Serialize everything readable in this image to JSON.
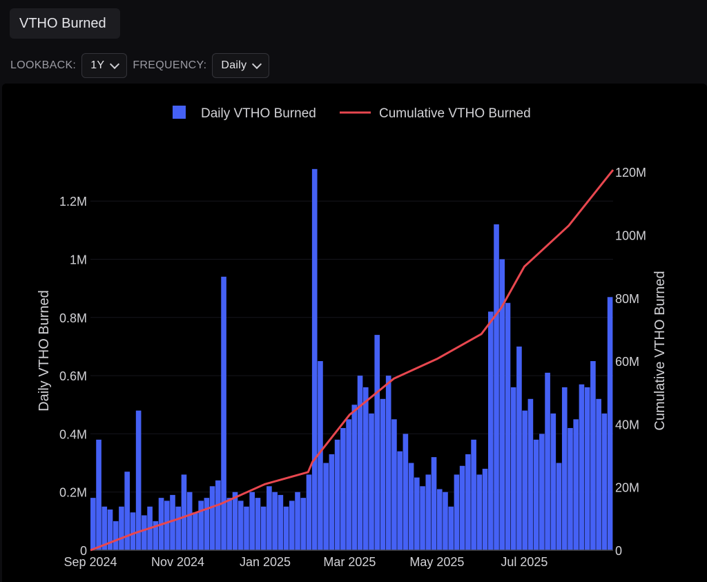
{
  "header": {
    "title": "VTHO Burned"
  },
  "controls": {
    "lookback_label": "LOOKBACK:",
    "lookback_value": "1Y",
    "frequency_label": "FREQUENCY:",
    "frequency_value": "Daily"
  },
  "colors": {
    "bars": "#4561f5",
    "line": "#e8474f"
  },
  "chart_data": {
    "type": "bar+line",
    "legend": [
      "Daily VTHO Burned",
      "Cumulative VTHO Burned"
    ],
    "legend_position": "top-center",
    "ylabel": "Daily VTHO Burned",
    "y2label": "Cumulative VTHO Burned",
    "ylim": [
      0,
      1.32
    ],
    "y2lim": [
      0,
      125
    ],
    "yticks": [
      {
        "v": 0,
        "label": "0"
      },
      {
        "v": 0.2,
        "label": "0.2M"
      },
      {
        "v": 0.4,
        "label": "0.4M"
      },
      {
        "v": 0.6,
        "label": "0.6M"
      },
      {
        "v": 0.8,
        "label": "0.8M"
      },
      {
        "v": 1,
        "label": "1M"
      },
      {
        "v": 1.2,
        "label": "1.2M"
      }
    ],
    "y2ticks": [
      {
        "v": 0,
        "label": "0"
      },
      {
        "v": 20,
        "label": "20M"
      },
      {
        "v": 40,
        "label": "40M"
      },
      {
        "v": 60,
        "label": "60M"
      },
      {
        "v": 80,
        "label": "80M"
      },
      {
        "v": 100,
        "label": "100M"
      },
      {
        "v": 120,
        "label": "120M"
      }
    ],
    "xrange_days": [
      0,
      365
    ],
    "xticks": [
      {
        "day": 0,
        "label": "Sep 2024"
      },
      {
        "day": 61,
        "label": "Nov 2024"
      },
      {
        "day": 122,
        "label": "Jan 2025"
      },
      {
        "day": 181,
        "label": "Mar 2025"
      },
      {
        "day": 242,
        "label": "May 2025"
      },
      {
        "day": 303,
        "label": "Jul 2025"
      }
    ],
    "daily_unit": "M VTHO (sampled ~every 4 days)",
    "daily": [
      0.18,
      0.38,
      0.15,
      0.14,
      0.1,
      0.15,
      0.27,
      0.13,
      0.48,
      0.12,
      0.15,
      0.1,
      0.18,
      0.17,
      0.19,
      0.15,
      0.26,
      0.2,
      0.13,
      0.17,
      0.18,
      0.22,
      0.24,
      0.94,
      0.18,
      0.2,
      0.17,
      0.15,
      0.2,
      0.18,
      0.15,
      0.22,
      0.2,
      0.19,
      0.15,
      0.17,
      0.2,
      0.18,
      0.26,
      1.31,
      0.65,
      0.3,
      0.33,
      0.38,
      0.42,
      0.45,
      0.5,
      0.6,
      0.56,
      0.47,
      0.74,
      0.52,
      0.6,
      0.45,
      0.34,
      0.4,
      0.3,
      0.25,
      0.22,
      0.26,
      0.32,
      0.21,
      0.2,
      0.15,
      0.26,
      0.29,
      0.33,
      0.38,
      0.26,
      0.28,
      0.82,
      1.12,
      1.0,
      0.85,
      0.56,
      0.7,
      0.48,
      0.52,
      0.38,
      0.4,
      0.61,
      0.47,
      0.3,
      0.56,
      0.42,
      0.45,
      0.57,
      0.56,
      0.65,
      0.52,
      0.47,
      0.87
    ],
    "cumulative": [
      {
        "day": 0,
        "v": 0
      },
      {
        "day": 30,
        "v": 5.3
      },
      {
        "day": 61,
        "v": 9.9
      },
      {
        "day": 91,
        "v": 14.7
      },
      {
        "day": 122,
        "v": 21
      },
      {
        "day": 152,
        "v": 24.8
      },
      {
        "day": 155,
        "v": 28
      },
      {
        "day": 181,
        "v": 43
      },
      {
        "day": 212,
        "v": 54.5
      },
      {
        "day": 242,
        "v": 60.7
      },
      {
        "day": 273,
        "v": 68.6
      },
      {
        "day": 287,
        "v": 77
      },
      {
        "day": 303,
        "v": 90
      },
      {
        "day": 334,
        "v": 103
      },
      {
        "day": 365,
        "v": 120.7
      }
    ]
  }
}
